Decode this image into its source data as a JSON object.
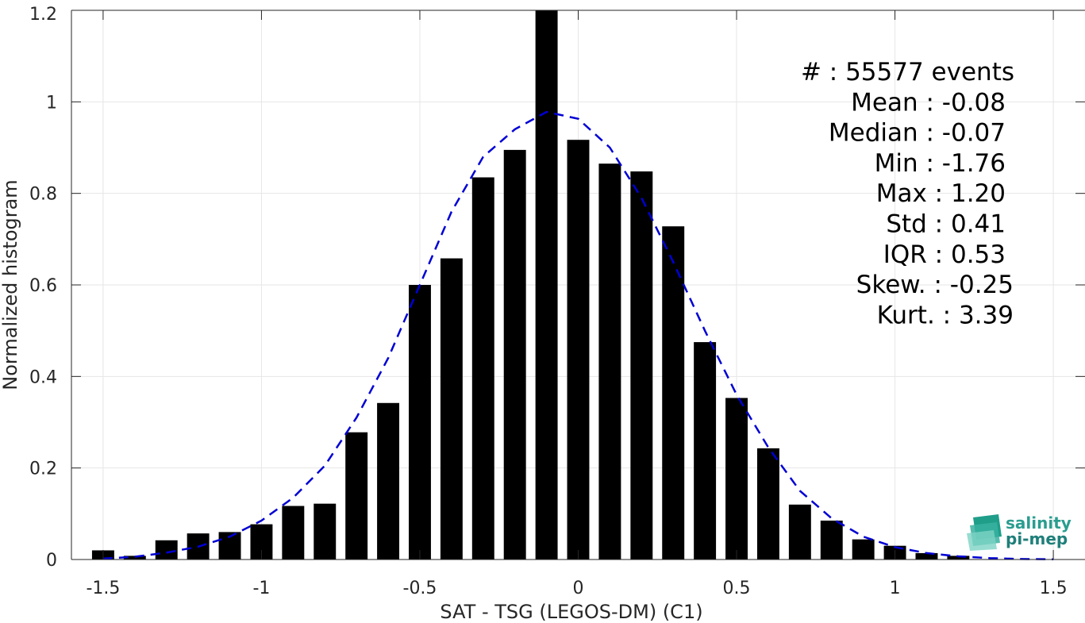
{
  "chart_data": {
    "type": "bar",
    "xlabel": "SAT - TSG (LEGOS-DM) (C1)",
    "ylabel": "Normalized histogram",
    "xlim": [
      -1.6,
      1.6
    ],
    "ylim": [
      0,
      1.2
    ],
    "x_ticks": [
      "-1.5",
      "-1",
      "-0.5",
      "0",
      "0.5",
      "1",
      "1.5"
    ],
    "y_ticks": [
      "0",
      "0.2",
      "0.4",
      "0.6",
      "0.8",
      "1",
      "1.2"
    ],
    "grid": true,
    "bar_width": 0.07,
    "bar_color": "#000000",
    "fit_color": "#0000d4",
    "bins": [
      -1.5,
      -1.4,
      -1.3,
      -1.2,
      -1.1,
      -1.0,
      -0.9,
      -0.8,
      -0.7,
      -0.6,
      -0.5,
      -0.4,
      -0.3,
      -0.2,
      -0.1,
      0.0,
      0.1,
      0.2,
      0.3,
      0.4,
      0.5,
      0.6,
      0.7,
      0.8,
      0.9,
      1.0,
      1.1,
      1.2
    ],
    "values": [
      0.02,
      0.008,
      0.042,
      0.057,
      0.06,
      0.077,
      0.117,
      0.122,
      0.278,
      0.342,
      0.6,
      0.658,
      0.835,
      0.895,
      1.2,
      0.917,
      0.865,
      0.848,
      0.728,
      0.475,
      0.353,
      0.243,
      0.12,
      0.085,
      0.044,
      0.03,
      0.014,
      0.008
    ],
    "fit": {
      "x": [
        -1.5,
        -1.4,
        -1.3,
        -1.2,
        -1.1,
        -1.0,
        -0.9,
        -0.8,
        -0.7,
        -0.6,
        -0.5,
        -0.4,
        -0.3,
        -0.2,
        -0.1,
        0.0,
        0.1,
        0.2,
        0.3,
        0.4,
        0.5,
        0.6,
        0.7,
        0.8,
        0.9,
        1.0,
        1.1,
        1.2,
        1.3,
        1.4,
        1.5
      ],
      "y": [
        0.002,
        0.006,
        0.015,
        0.028,
        0.05,
        0.085,
        0.135,
        0.205,
        0.31,
        0.44,
        0.6,
        0.76,
        0.88,
        0.94,
        0.978,
        0.963,
        0.9,
        0.79,
        0.65,
        0.5,
        0.36,
        0.245,
        0.15,
        0.09,
        0.05,
        0.027,
        0.014,
        0.007,
        0.003,
        0.001,
        0.0005
      ]
    },
    "annotations": [
      "#  : 55577 events",
      "Mean : -0.08",
      "Median : -0.07",
      "Min : -1.76",
      "Max : 1.20",
      "Std : 0.41",
      "IQR : 0.53",
      "Skew. : -0.25",
      "Kurt. : 3.39"
    ]
  },
  "logo": {
    "line1": "salinity",
    "line2": "pi-mep",
    "color": "#2a9d8f",
    "color2": "#1f7f7a"
  }
}
